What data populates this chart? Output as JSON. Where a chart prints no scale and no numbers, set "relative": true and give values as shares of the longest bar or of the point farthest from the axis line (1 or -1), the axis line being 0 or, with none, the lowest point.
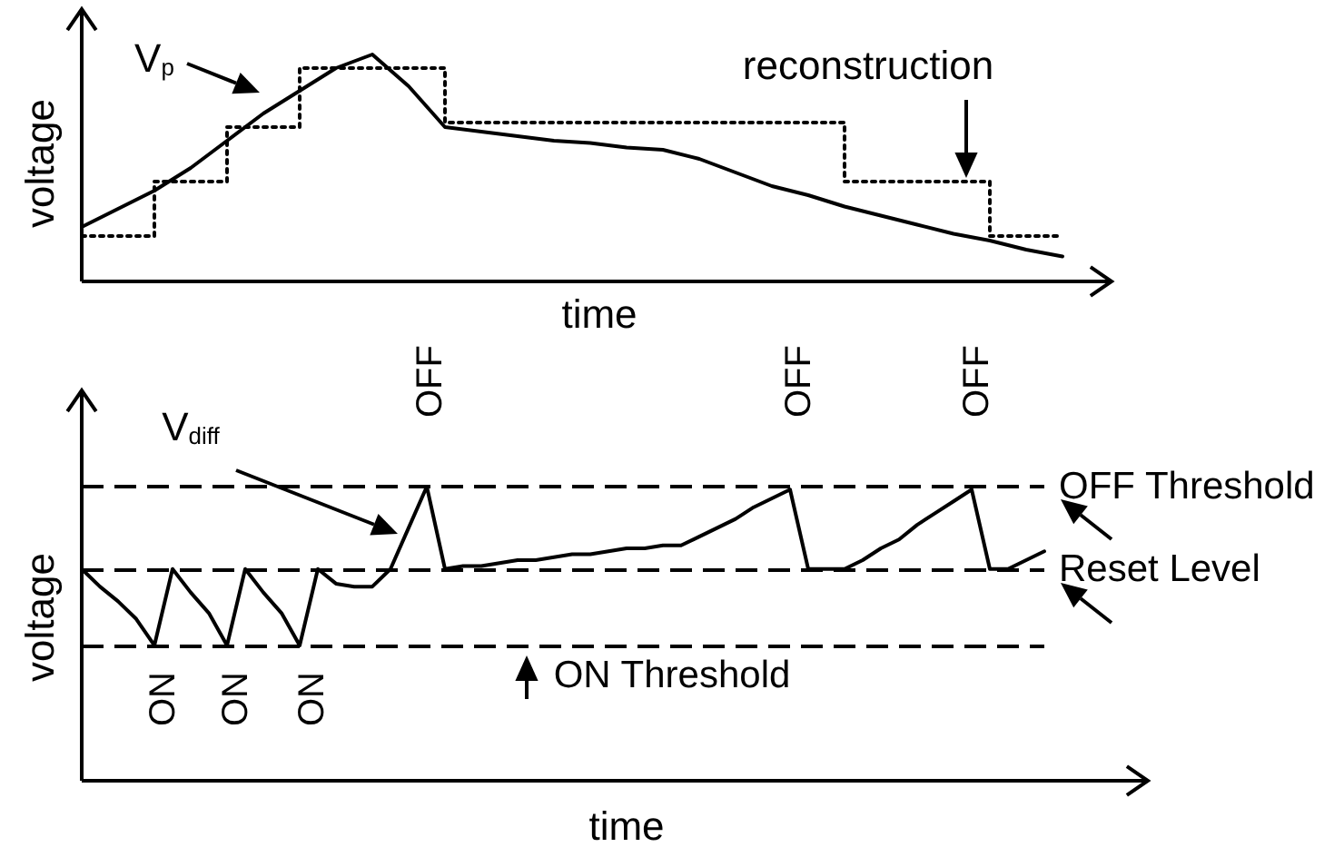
{
  "chart_data": [
    {
      "type": "line",
      "relative": true,
      "xlabel": "time",
      "ylabel": "voltage",
      "categories": [
        null,
        null,
        null,
        null,
        null,
        null,
        null,
        null,
        null,
        null,
        null,
        null,
        null,
        null,
        null,
        null,
        null,
        null,
        null,
        null,
        null,
        null,
        null,
        null,
        null,
        null,
        null,
        null
      ],
      "series": [
        {
          "name": "V$_{p}$",
          "color": "#000000",
          "line_style": "solid",
          "values": [
            0.24,
            0.32,
            0.4,
            0.5,
            0.62,
            0.74,
            0.84,
            0.94,
            1.0,
            0.86,
            0.68,
            0.66,
            0.64,
            0.62,
            0.61,
            0.59,
            0.58,
            0.54,
            0.48,
            0.42,
            0.38,
            0.33,
            0.29,
            0.25,
            0.21,
            0.18,
            0.14,
            0.11
          ]
        },
        {
          "name": "reconstruction",
          "type": "step",
          "color": "#000000",
          "line_style": "dotted",
          "values": [
            0.2,
            0.2,
            0.44,
            0.44,
            0.68,
            0.68,
            0.94,
            0.94,
            0.94,
            0.94,
            0.7,
            0.7,
            0.7,
            0.7,
            0.7,
            0.7,
            0.7,
            0.7,
            0.7,
            0.7,
            0.7,
            0.44,
            0.44,
            0.44,
            0.44,
            0.2,
            0.2,
            0.2
          ]
        }
      ]
    },
    {
      "type": "line",
      "relative": true,
      "xlabel": "time",
      "ylabel": "voltage",
      "categories": [
        null,
        null,
        null,
        null,
        null,
        null,
        null,
        null,
        null,
        null,
        null,
        null,
        null,
        null,
        null,
        null,
        null,
        null,
        null,
        null,
        null,
        null,
        null,
        null,
        null,
        null,
        null,
        null,
        null,
        null,
        null,
        null,
        null,
        null,
        null,
        null,
        null,
        null,
        null,
        null,
        null,
        null,
        null,
        null,
        null,
        null,
        null,
        null,
        null,
        null,
        null,
        null,
        null,
        null
      ],
      "series": [
        {
          "name": "V$_{diff}$",
          "color": "#000000",
          "line_style": "solid",
          "values": [
            0.72,
            0.66,
            0.61,
            0.55,
            0.46,
            0.72,
            0.64,
            0.57,
            0.46,
            0.72,
            0.64,
            0.57,
            0.46,
            0.72,
            0.67,
            0.66,
            0.66,
            0.72,
            0.86,
            1.0,
            0.72,
            0.73,
            0.73,
            0.74,
            0.75,
            0.75,
            0.76,
            0.77,
            0.77,
            0.78,
            0.79,
            0.79,
            0.8,
            0.8,
            0.83,
            0.86,
            0.89,
            0.93,
            0.96,
            0.99,
            0.72,
            0.72,
            0.72,
            0.75,
            0.79,
            0.82,
            0.87,
            0.91,
            0.95,
            0.99,
            0.72,
            0.72,
            0.75,
            0.78
          ]
        }
      ],
      "ref_lines": [
        {
          "axis": "y",
          "value": 1.0,
          "label": "OFF Threshold",
          "color": "#000000",
          "line_style": "dashed"
        },
        {
          "axis": "y",
          "value": 0.72,
          "label": "Reset Level",
          "color": "#000000",
          "line_style": "dashed"
        },
        {
          "axis": "y",
          "value": 0.46,
          "label": "ON Threshold",
          "color": "#000000",
          "line_style": "dashed"
        }
      ],
      "annotations": [
        "OFF",
        "OFF",
        "OFF",
        "ON",
        "ON",
        "ON"
      ]
    }
  ]
}
